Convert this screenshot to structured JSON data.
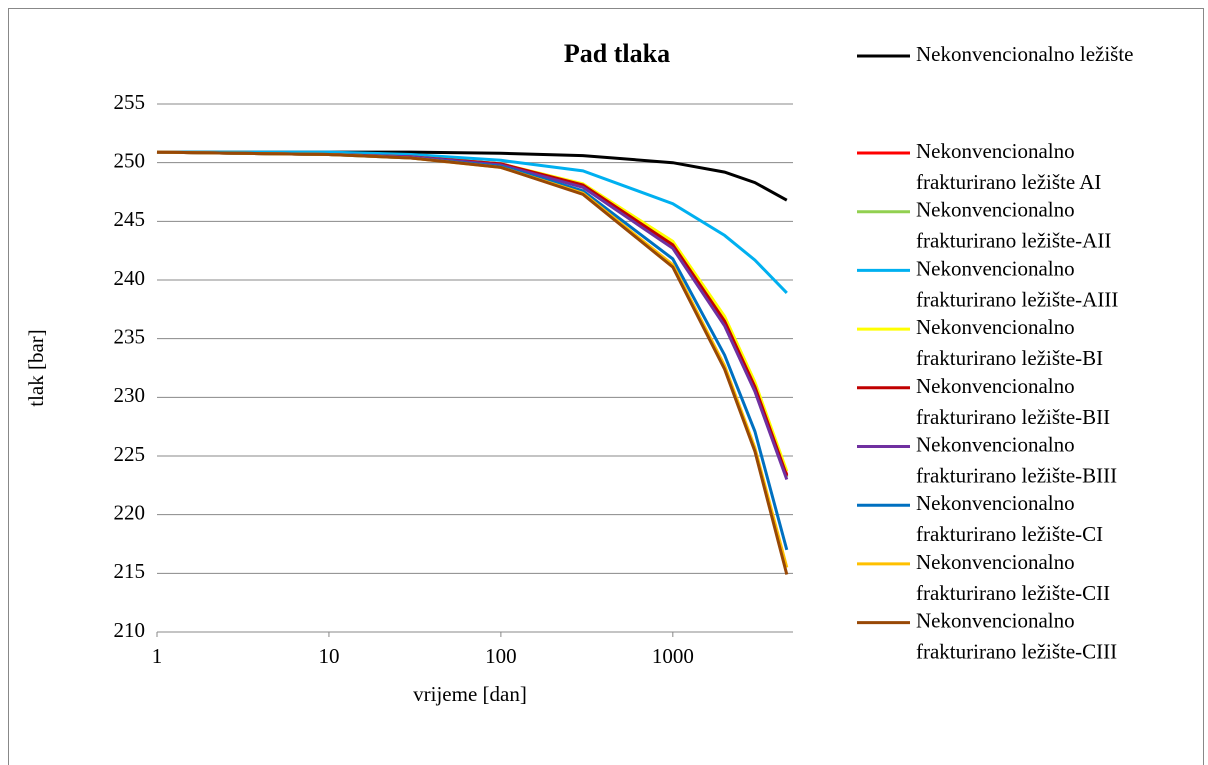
{
  "chart_data": {
    "type": "line",
    "title": "Pad tlaka",
    "x_label": "vrijeme [dan]",
    "y_label": "tlak [bar]",
    "log_x": true,
    "grid": true,
    "legend": "right",
    "x": [
      1,
      10,
      30,
      100,
      300,
      1000,
      2000,
      3000,
      4600
    ],
    "xlim": [
      1,
      5000
    ],
    "xticks": [
      1,
      10,
      100,
      1000
    ],
    "ylim": [
      210,
      255
    ],
    "yticks": [
      210,
      215,
      220,
      225,
      230,
      235,
      240,
      245,
      250,
      255
    ],
    "series": [
      {
        "name": "Nekonvencionalno ležište",
        "color": "#000000",
        "values": [
          250.9,
          250.9,
          250.9,
          250.8,
          250.6,
          250.0,
          249.2,
          248.3,
          246.8
        ]
      },
      {
        "name": "Nekonvencionalno frakturirano ležište AI",
        "color": "#ff0000",
        "values": [
          250.9,
          250.7,
          250.5,
          249.9,
          248.1,
          243.1,
          236.6,
          231.0,
          223.4
        ]
      },
      {
        "name": "Nekonvencionalno frakturirano ležište-AII",
        "color": "#92d050",
        "values": [
          250.9,
          250.7,
          250.5,
          249.9,
          248.0,
          242.9,
          236.4,
          230.8,
          223.2
        ]
      },
      {
        "name": "Nekonvencionalno frakturirano ležište-AIII",
        "color": "#00b0f0",
        "values": [
          250.9,
          250.9,
          250.7,
          250.2,
          249.3,
          246.5,
          243.8,
          241.7,
          238.9
        ]
      },
      {
        "name": "Nekonvencionalno frakturirano ležište-BI",
        "color": "#ffff00",
        "values": [
          250.9,
          250.7,
          250.5,
          249.9,
          248.2,
          243.3,
          236.9,
          231.3,
          223.7
        ]
      },
      {
        "name": "Nekonvencionalno frakturirano ležište-BII",
        "color": "#c00000",
        "values": [
          250.9,
          250.7,
          250.5,
          249.9,
          248.1,
          243.0,
          236.5,
          230.9,
          223.3
        ]
      },
      {
        "name": "Nekonvencionalno frakturirano ležište-BIII",
        "color": "#7030a0",
        "values": [
          250.9,
          250.7,
          250.5,
          249.8,
          247.9,
          242.7,
          236.1,
          230.5,
          223.0
        ]
      },
      {
        "name": "Nekonvencionalno frakturirano ležište-CI",
        "color": "#0070c0",
        "values": [
          250.9,
          250.7,
          250.4,
          249.7,
          247.6,
          241.8,
          233.6,
          227.1,
          217.0
        ]
      },
      {
        "name": "Nekonvencionalno frakturirano ležište-CII",
        "color": "#ffc000",
        "values": [
          250.9,
          250.7,
          250.4,
          249.6,
          247.4,
          241.3,
          232.7,
          225.7,
          215.5
        ]
      },
      {
        "name": "Nekonvencionalno frakturirano ležište-CIII",
        "color": "#984806",
        "values": [
          250.9,
          250.7,
          250.4,
          249.6,
          247.3,
          241.1,
          232.4,
          225.4,
          214.9
        ]
      }
    ]
  }
}
